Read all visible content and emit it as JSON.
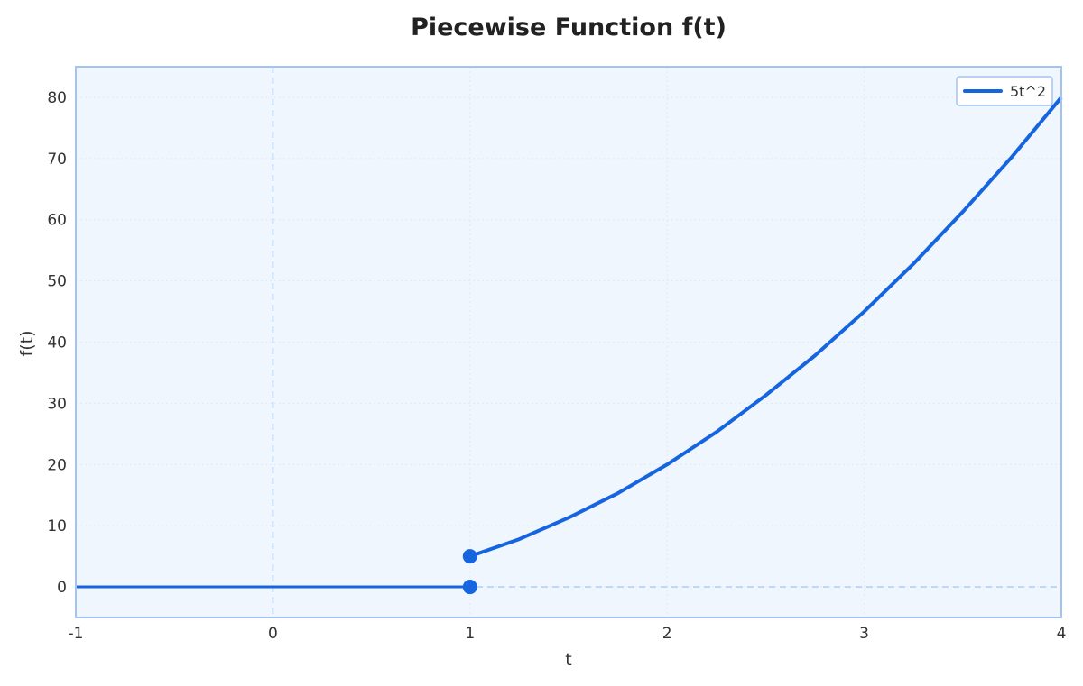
{
  "chart_data": {
    "type": "line",
    "title": "Piecewise Function f(t)",
    "xlabel": "t",
    "ylabel": "f(t)",
    "xlim": [
      -1,
      4
    ],
    "ylim": [
      -5,
      85
    ],
    "x_ticks": [
      "-1",
      "0",
      "1",
      "2",
      "3",
      "4"
    ],
    "y_ticks": [
      "0",
      "10",
      "20",
      "30",
      "40",
      "50",
      "60",
      "70",
      "80"
    ],
    "grid": true,
    "legend_position": "top-right",
    "series": [
      {
        "name": "5t^2",
        "color": "#1565e0",
        "x": [
          1.0,
          1.25,
          1.5,
          1.75,
          2.0,
          2.25,
          2.5,
          2.75,
          3.0,
          3.25,
          3.5,
          3.75,
          4.0
        ],
        "y": [
          5,
          7.8,
          11.3,
          15.3,
          20,
          25.3,
          31.3,
          37.8,
          45,
          52.8,
          61.3,
          70.3,
          80
        ]
      },
      {
        "name": "",
        "color": "#1565e0",
        "x": [
          -1,
          1
        ],
        "y": [
          0,
          0
        ]
      }
    ],
    "points": [
      {
        "x": 1,
        "y": 5
      },
      {
        "x": 1,
        "y": 0
      }
    ],
    "reference_lines": [
      {
        "axis": "x",
        "value": 0
      },
      {
        "axis": "y",
        "value": 0
      }
    ],
    "colors": {
      "plot_bg": "#f0f6fd",
      "frame": "#a3c4f3",
      "line": "#1565e0",
      "reference": "#bcd6f5"
    }
  }
}
